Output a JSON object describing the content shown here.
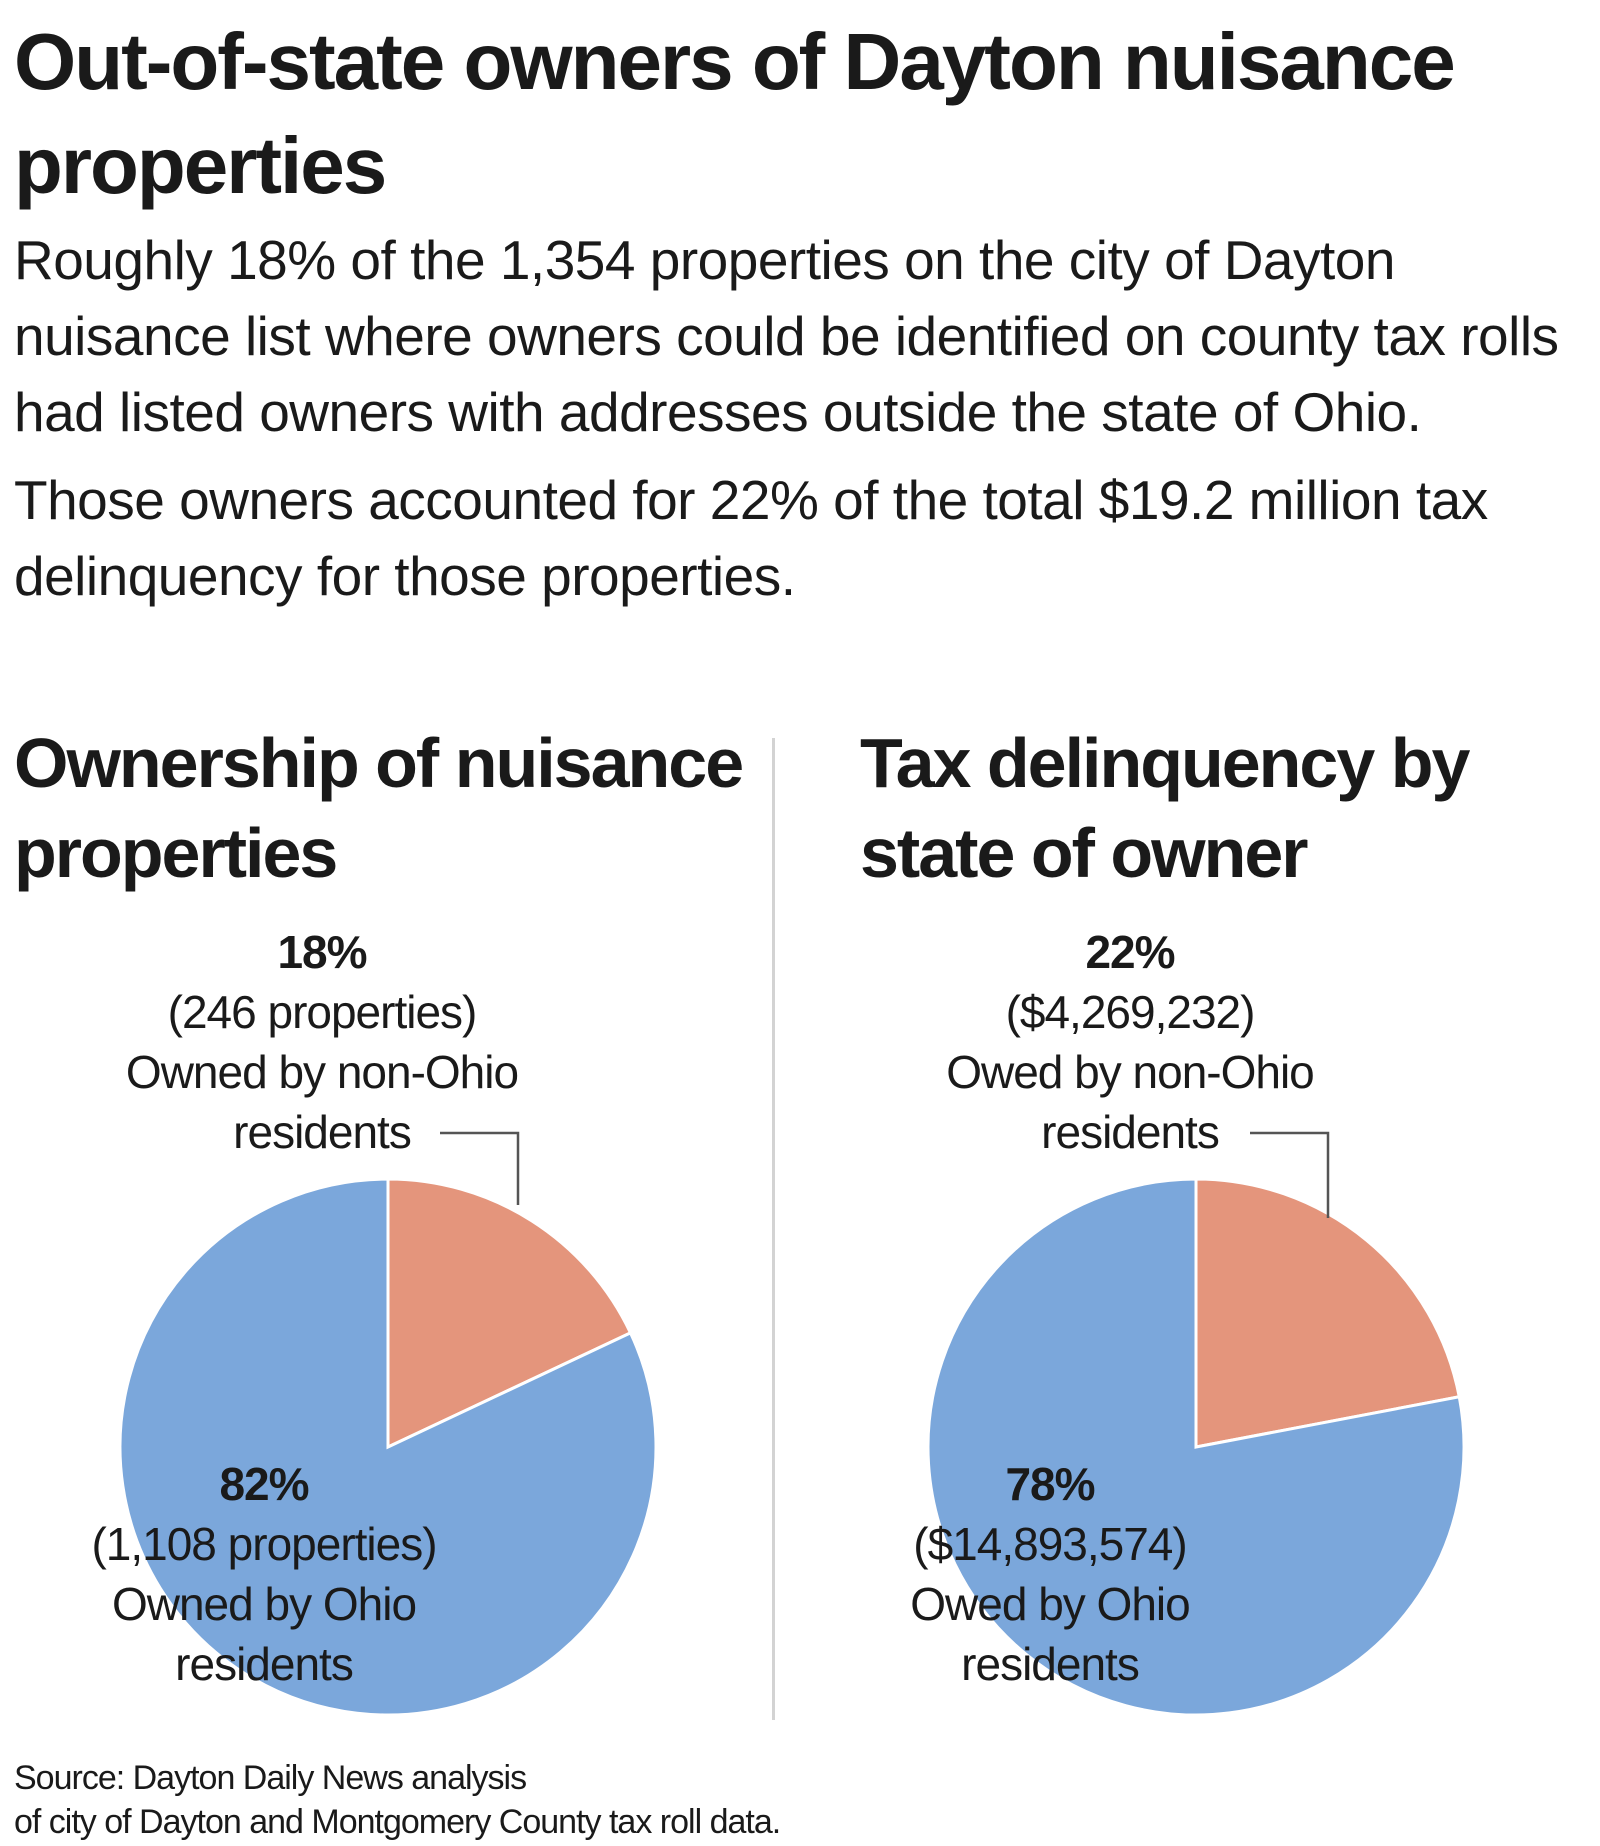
{
  "headline": "Out-of-state owners of Dayton nuisance properties",
  "intro": [
    "Roughly 18% of the 1,354 properties on the city of Dayton nuisance list where owners could be identified on county tax rolls had listed owners with addresses outside the state of Ohio.",
    "Those owners accounted for 22% of the total $19.2 million tax delinquency for those properties."
  ],
  "colors": {
    "non_ohio": "#e4957c",
    "ohio": "#7ba7db",
    "leader_line": "#555555",
    "divider": "#d3d3d3"
  },
  "chart_data": [
    {
      "type": "pie",
      "title": "Ownership of nuisance properties",
      "slices": [
        {
          "name": "Owned by non-Ohio residents",
          "percent": 18,
          "value": 246,
          "color": "#e4957c",
          "label": [
            "18%",
            "(246 properties)",
            "Owned by non-Ohio",
            "residents"
          ]
        },
        {
          "name": "Owned by Ohio residents",
          "percent": 82,
          "value": 1108,
          "color": "#7ba7db",
          "label": [
            "82%",
            "(1,108 properties)",
            "Owned by Ohio",
            "residents"
          ]
        }
      ]
    },
    {
      "type": "pie",
      "title": "Tax delinquency by state of owner",
      "slices": [
        {
          "name": "Owed by non-Ohio residents",
          "percent": 22,
          "value": 4269232,
          "color": "#e4957c",
          "label": [
            "22%",
            "($4,269,232)",
            "Owed by non-Ohio",
            "residents"
          ]
        },
        {
          "name": "Owed by Ohio residents",
          "percent": 78,
          "value": 14893574,
          "color": "#7ba7db",
          "label": [
            "78%",
            "($14,893,574)",
            "Owed by Ohio",
            "residents"
          ]
        }
      ]
    }
  ],
  "source": [
    "Source: Dayton Daily News analysis",
    "of city of Dayton and Montgomery County tax roll data."
  ]
}
